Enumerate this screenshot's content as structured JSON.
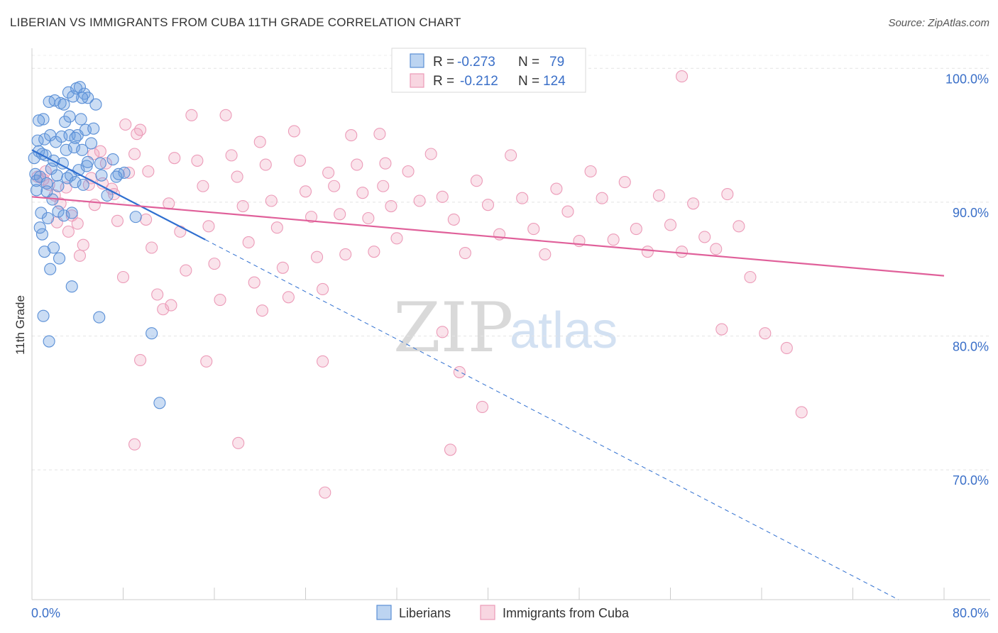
{
  "chart_data": {
    "type": "scatter",
    "title": "LIBERIAN VS IMMIGRANTS FROM CUBA 11TH GRADE CORRELATION CHART",
    "source": "Source: ZipAtlas.com",
    "xlabel": "",
    "ylabel": "11th Grade",
    "xlim": [
      0,
      80
    ],
    "ylim": [
      60.3,
      101.5
    ],
    "x_tick_labels": [
      "0.0%",
      "80.0%"
    ],
    "y_ticks": [
      70,
      80,
      90,
      100
    ],
    "y_tick_labels": [
      "70.0%",
      "80.0%",
      "90.0%",
      "100.0%"
    ],
    "watermark": {
      "zip": "ZIP",
      "atlas": "atlas"
    },
    "legend": [
      {
        "series": "Liberians",
        "r_label": "R =",
        "r_value": "-0.273",
        "n_label": "N =",
        "n_value": "79"
      },
      {
        "series": "Immigrants from Cuba",
        "r_label": "R =",
        "r_value": "-0.212",
        "n_label": "N =",
        "n_value": "124"
      }
    ],
    "series": [
      {
        "name": "Liberians",
        "color": "#6a9fe0",
        "line_color": "#2f6fd0",
        "trend": {
          "solid": [
            [
              0,
              93.9
            ],
            [
              15.2,
              87.2
            ]
          ],
          "dashed": [
            [
              15.2,
              87.2
            ],
            [
              76,
              60.3
            ]
          ]
        },
        "points": [
          [
            0.2,
            93.3
          ],
          [
            0.3,
            92.1
          ],
          [
            0.4,
            91.6
          ],
          [
            0.5,
            94.6
          ],
          [
            0.6,
            93.8
          ],
          [
            0.7,
            91.9
          ],
          [
            0.8,
            89.2
          ],
          [
            0.9,
            87.6
          ],
          [
            1.0,
            96.2
          ],
          [
            1.1,
            94.7
          ],
          [
            1.2,
            93.5
          ],
          [
            1.3,
            91.4
          ],
          [
            1.4,
            88.8
          ],
          [
            1.5,
            97.5
          ],
          [
            1.6,
            95.0
          ],
          [
            1.7,
            92.5
          ],
          [
            1.8,
            90.2
          ],
          [
            1.9,
            86.6
          ],
          [
            2.0,
            97.6
          ],
          [
            2.1,
            94.5
          ],
          [
            2.2,
            92.0
          ],
          [
            2.3,
            89.3
          ],
          [
            2.4,
            85.8
          ],
          [
            2.5,
            97.4
          ],
          [
            2.6,
            94.9
          ],
          [
            2.7,
            92.9
          ],
          [
            2.8,
            89.0
          ],
          [
            2.9,
            96.0
          ],
          [
            3.0,
            93.9
          ],
          [
            3.1,
            91.8
          ],
          [
            3.2,
            98.2
          ],
          [
            3.3,
            95.0
          ],
          [
            3.4,
            92.0
          ],
          [
            3.5,
            89.2
          ],
          [
            3.6,
            97.9
          ],
          [
            3.7,
            94.1
          ],
          [
            3.8,
            91.5
          ],
          [
            3.9,
            98.5
          ],
          [
            4.0,
            95.0
          ],
          [
            4.1,
            92.4
          ],
          [
            4.2,
            98.6
          ],
          [
            4.3,
            96.2
          ],
          [
            4.4,
            93.9
          ],
          [
            4.5,
            91.3
          ],
          [
            4.6,
            98.1
          ],
          [
            4.7,
            95.4
          ],
          [
            4.8,
            92.7
          ],
          [
            4.9,
            97.8
          ],
          [
            5.2,
            94.4
          ],
          [
            5.6,
            97.3
          ],
          [
            6.1,
            92.0
          ],
          [
            6.6,
            90.5
          ],
          [
            7.1,
            93.2
          ],
          [
            7.6,
            92.1
          ],
          [
            8.1,
            92.2
          ],
          [
            9.1,
            88.9
          ],
          [
            1.0,
            81.5
          ],
          [
            1.5,
            79.6
          ],
          [
            3.5,
            83.7
          ],
          [
            5.9,
            81.4
          ],
          [
            7.4,
            91.9
          ],
          [
            10.5,
            80.2
          ],
          [
            11.2,
            75.0
          ],
          [
            0.6,
            96.1
          ],
          [
            0.9,
            93.6
          ],
          [
            1.3,
            90.8
          ],
          [
            1.9,
            93.1
          ],
          [
            2.3,
            91.2
          ],
          [
            2.8,
            97.3
          ],
          [
            3.3,
            96.4
          ],
          [
            3.8,
            94.8
          ],
          [
            4.4,
            97.8
          ],
          [
            4.9,
            93.0
          ],
          [
            5.4,
            95.5
          ],
          [
            6.0,
            92.9
          ],
          [
            0.4,
            90.9
          ],
          [
            0.7,
            88.1
          ],
          [
            1.1,
            86.3
          ],
          [
            1.6,
            85.0
          ]
        ]
      },
      {
        "name": "Immigrants from Cuba",
        "color": "#f0a3bd",
        "line_color": "#e0609a",
        "trend": {
          "solid": [
            [
              0,
              90.4
            ],
            [
              80,
              84.5
            ]
          ]
        },
        "points": [
          [
            0.5,
            91.9
          ],
          [
            1.0,
            91.7
          ],
          [
            1.5,
            91.3
          ],
          [
            2.0,
            90.5
          ],
          [
            2.5,
            89.9
          ],
          [
            3.0,
            91.1
          ],
          [
            3.5,
            89.0
          ],
          [
            4.0,
            88.4
          ],
          [
            4.5,
            86.8
          ],
          [
            5.0,
            91.3
          ],
          [
            5.5,
            89.8
          ],
          [
            6.0,
            93.8
          ],
          [
            6.5,
            92.9
          ],
          [
            7.0,
            91.0
          ],
          [
            7.5,
            88.6
          ],
          [
            8.0,
            84.4
          ],
          [
            8.5,
            92.2
          ],
          [
            9.0,
            93.6
          ],
          [
            9.5,
            95.4
          ],
          [
            10.0,
            88.7
          ],
          [
            10.5,
            86.6
          ],
          [
            11.0,
            83.1
          ],
          [
            11.5,
            82.0
          ],
          [
            12.0,
            89.9
          ],
          [
            12.5,
            93.3
          ],
          [
            13.0,
            87.8
          ],
          [
            13.5,
            84.9
          ],
          [
            14.0,
            96.5
          ],
          [
            14.5,
            93.1
          ],
          [
            15.0,
            91.2
          ],
          [
            15.5,
            88.2
          ],
          [
            16.0,
            85.4
          ],
          [
            16.5,
            82.7
          ],
          [
            17.0,
            96.5
          ],
          [
            17.5,
            93.5
          ],
          [
            18.0,
            91.9
          ],
          [
            18.5,
            89.7
          ],
          [
            19.0,
            87.0
          ],
          [
            19.5,
            84.0
          ],
          [
            20.0,
            94.5
          ],
          [
            20.5,
            92.8
          ],
          [
            21.0,
            90.1
          ],
          [
            21.5,
            88.1
          ],
          [
            22.0,
            85.1
          ],
          [
            22.5,
            82.9
          ],
          [
            23.0,
            95.3
          ],
          [
            23.5,
            93.1
          ],
          [
            24.0,
            90.8
          ],
          [
            24.5,
            88.9
          ],
          [
            25.0,
            85.9
          ],
          [
            25.5,
            83.5
          ],
          [
            26.0,
            92.2
          ],
          [
            26.5,
            91.2
          ],
          [
            27.0,
            89.1
          ],
          [
            27.5,
            86.1
          ],
          [
            28.0,
            95.0
          ],
          [
            28.5,
            92.8
          ],
          [
            29.0,
            90.7
          ],
          [
            29.5,
            88.8
          ],
          [
            30.0,
            86.3
          ],
          [
            30.5,
            95.1
          ],
          [
            31.0,
            92.9
          ],
          [
            31.5,
            89.7
          ],
          [
            32.0,
            87.3
          ],
          [
            33.0,
            92.3
          ],
          [
            34.0,
            90.1
          ],
          [
            35.0,
            93.6
          ],
          [
            36.0,
            90.4
          ],
          [
            37.0,
            88.7
          ],
          [
            38.0,
            86.2
          ],
          [
            39.0,
            91.6
          ],
          [
            40.0,
            89.8
          ],
          [
            41.0,
            87.6
          ],
          [
            42.0,
            93.5
          ],
          [
            43.0,
            90.3
          ],
          [
            44.0,
            88.0
          ],
          [
            45.0,
            86.1
          ],
          [
            46.0,
            91.0
          ],
          [
            47.0,
            89.3
          ],
          [
            48.0,
            87.1
          ],
          [
            49.0,
            92.3
          ],
          [
            50.0,
            90.3
          ],
          [
            51.0,
            87.2
          ],
          [
            52.0,
            91.5
          ],
          [
            53.0,
            88.0
          ],
          [
            54.0,
            86.3
          ],
          [
            55.0,
            90.5
          ],
          [
            56.0,
            88.3
          ],
          [
            57.0,
            86.3
          ],
          [
            58.0,
            89.9
          ],
          [
            59.0,
            87.4
          ],
          [
            60.0,
            86.5
          ],
          [
            61.0,
            90.6
          ],
          [
            62.0,
            88.2
          ],
          [
            63.0,
            84.4
          ],
          [
            1.2,
            92.3
          ],
          [
            2.2,
            88.5
          ],
          [
            3.2,
            87.8
          ],
          [
            4.2,
            86.0
          ],
          [
            5.2,
            91.8
          ],
          [
            6.2,
            91.4
          ],
          [
            7.2,
            90.6
          ],
          [
            8.2,
            95.8
          ],
          [
            9.2,
            95.1
          ],
          [
            10.2,
            92.3
          ],
          [
            12.2,
            82.3
          ],
          [
            15.3,
            78.1
          ],
          [
            20.2,
            81.9
          ],
          [
            25.5,
            78.1
          ],
          [
            30.8,
            91.2
          ],
          [
            36.0,
            80.3
          ],
          [
            37.5,
            77.3
          ],
          [
            39.5,
            74.7
          ],
          [
            9.5,
            78.2
          ],
          [
            18.1,
            72.0
          ],
          [
            25.7,
            68.3
          ],
          [
            36.7,
            71.5
          ],
          [
            60.5,
            80.5
          ],
          [
            64.3,
            80.2
          ],
          [
            66.2,
            79.1
          ],
          [
            67.5,
            74.3
          ],
          [
            57.0,
            99.4
          ],
          [
            9.0,
            71.9
          ],
          [
            5.4,
            93.6
          ]
        ]
      }
    ]
  }
}
